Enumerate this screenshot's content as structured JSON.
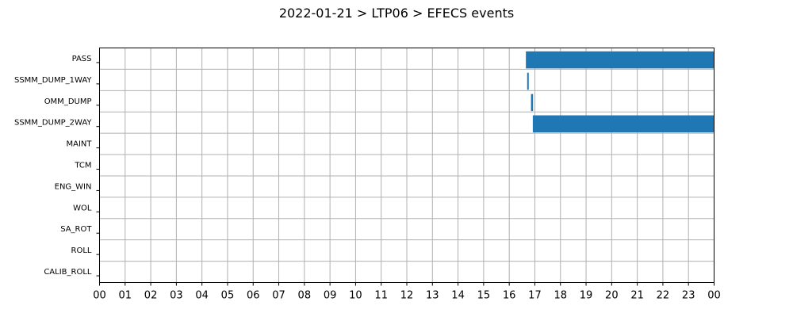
{
  "chart_data": {
    "type": "bar",
    "orientation": "horizontal-timeline",
    "title": "2022-01-21 > LTP06 > EFECS events",
    "xlabel": "",
    "ylabel": "",
    "x_unit": "hours",
    "xlim": [
      0,
      24
    ],
    "x_ticks": [
      0,
      1,
      2,
      3,
      4,
      5,
      6,
      7,
      8,
      9,
      10,
      11,
      12,
      13,
      14,
      15,
      16,
      17,
      18,
      19,
      20,
      21,
      22,
      23,
      24
    ],
    "x_tick_labels": [
      "00",
      "01",
      "02",
      "03",
      "04",
      "05",
      "06",
      "07",
      "08",
      "09",
      "10",
      "11",
      "12",
      "13",
      "14",
      "15",
      "16",
      "17",
      "18",
      "19",
      "20",
      "21",
      "22",
      "23",
      "00"
    ],
    "categories": [
      "PASS",
      "SSMM_DUMP_1WAY",
      "OMM_DUMP",
      "SSMM_DUMP_2WAY",
      "MAINT",
      "TCM",
      "ENG_WIN",
      "WOL",
      "SA_ROT",
      "ROLL",
      "CALIB_ROLL"
    ],
    "grid": true,
    "bar_color": "#1f77b4",
    "events": [
      {
        "category": "PASS",
        "start": 16.65,
        "end": 24.0
      },
      {
        "category": "SSMM_DUMP_1WAY",
        "start": 16.7,
        "end": 16.76
      },
      {
        "category": "OMM_DUMP",
        "start": 16.85,
        "end": 16.93
      },
      {
        "category": "SSMM_DUMP_2WAY",
        "start": 16.92,
        "end": 24.0
      }
    ]
  }
}
